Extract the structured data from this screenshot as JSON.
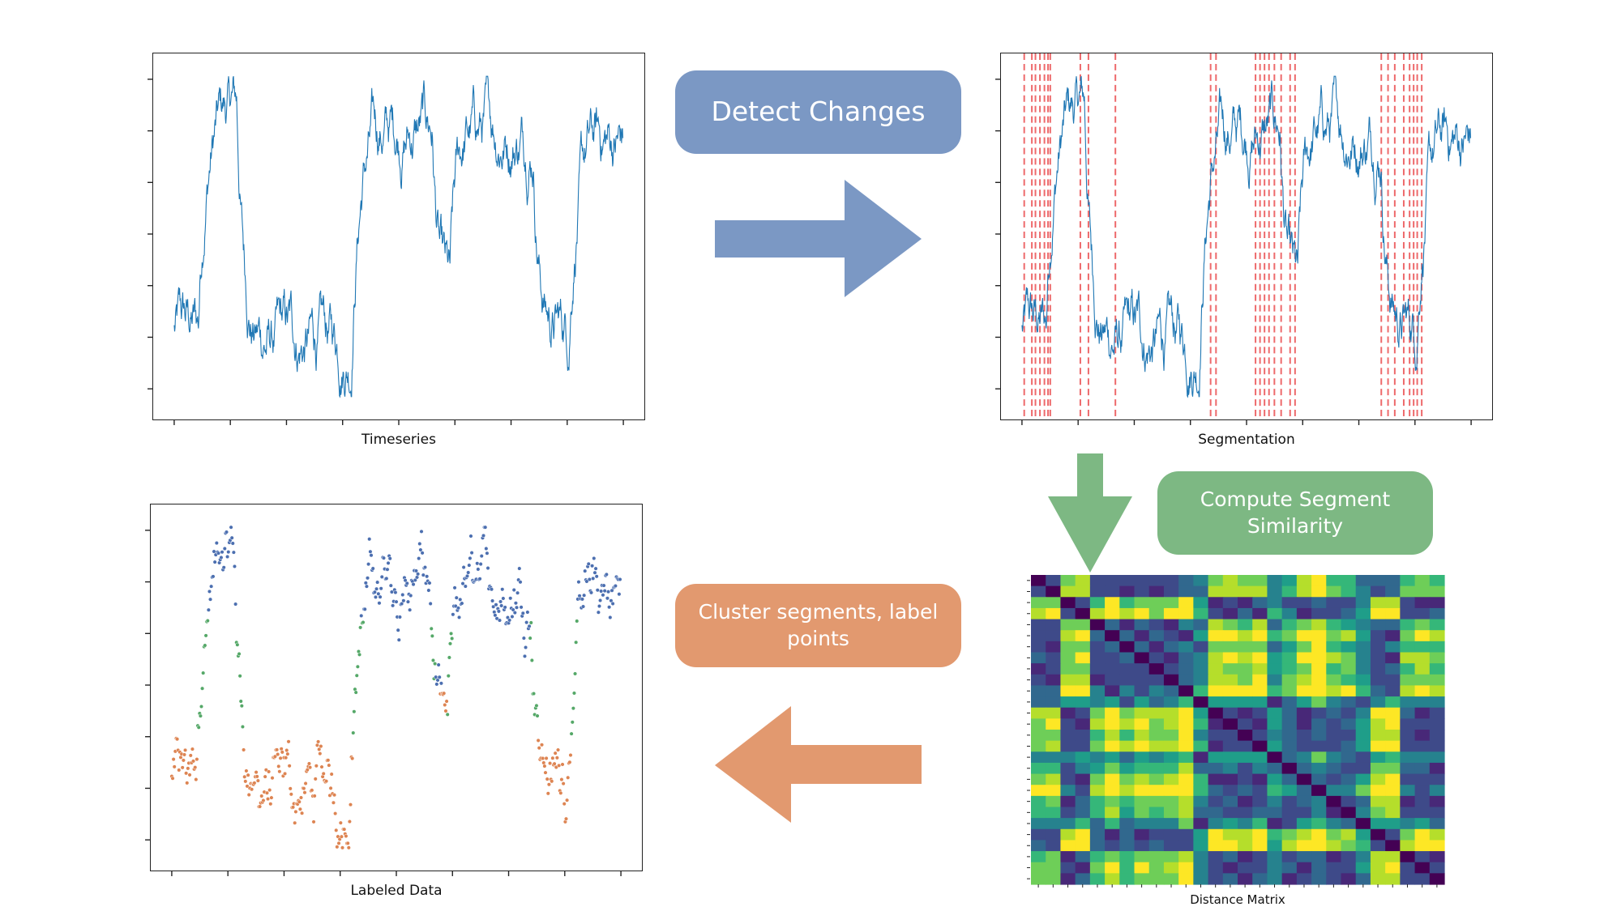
{
  "colors": {
    "line": "#1f77b4",
    "segment_line": "#e8383a",
    "blue_step": "#7b98c4",
    "green_step": "#7db883",
    "orange_step": "#e2996f",
    "cluster_blue": "#4c6fb0",
    "cluster_orange": "#dd8452",
    "cluster_green": "#55a868"
  },
  "panels": {
    "timeseries": {
      "caption": "Timeseries"
    },
    "segmentation": {
      "caption": "Segmentation"
    },
    "labeled": {
      "caption": "Labeled Data"
    },
    "matrix": {
      "caption": "Distance Matrix"
    }
  },
  "steps": {
    "detect": {
      "label": "Detect Changes",
      "arrow_icon": "arrow-right-icon"
    },
    "similarity": {
      "label": "Compute Segment Similarity",
      "arrow_icon": "arrow-down-icon"
    },
    "cluster": {
      "label": "Cluster segments, label points",
      "arrow_icon": "arrow-left-icon"
    }
  },
  "chart_data": [
    {
      "type": "line",
      "panel": "timeseries",
      "xlabel": "Timeseries",
      "ylabel": "",
      "x_range": [
        0,
        1000
      ],
      "y_range": [
        0,
        1
      ],
      "regimes": [
        {
          "x": [
            0,
            55
          ],
          "level": 0.22
        },
        {
          "x": [
            55,
            140
          ],
          "level": 0.88
        },
        {
          "x": [
            140,
            395
          ],
          "level": 0.18
        },
        {
          "x": [
            395,
            575
          ],
          "level": 0.82
        },
        {
          "x": [
            575,
            615
          ],
          "level": 0.25
        },
        {
          "x": [
            615,
            800
          ],
          "level": 0.82
        },
        {
          "x": [
            800,
            880
          ],
          "level": 0.22
        },
        {
          "x": [
            880,
            1000
          ],
          "level": 0.78
        }
      ]
    },
    {
      "type": "line",
      "panel": "segmentation",
      "xlabel": "Segmentation",
      "change_points": [
        5,
        22,
        30,
        40,
        50,
        58,
        63,
        130,
        148,
        208,
        420,
        432,
        520,
        530,
        540,
        550,
        562,
        577,
        597,
        608,
        800,
        815,
        830,
        850,
        863,
        872,
        880,
        890
      ]
    },
    {
      "type": "scatter",
      "panel": "labeled",
      "xlabel": "Labeled Data",
      "series": [
        {
          "cluster": "high"
        },
        {
          "cluster": "low"
        },
        {
          "cluster": "transition"
        }
      ]
    },
    {
      "type": "heatmap",
      "panel": "matrix",
      "xlabel": "Distance Matrix",
      "size": 28,
      "colormap": "viridis"
    }
  ]
}
